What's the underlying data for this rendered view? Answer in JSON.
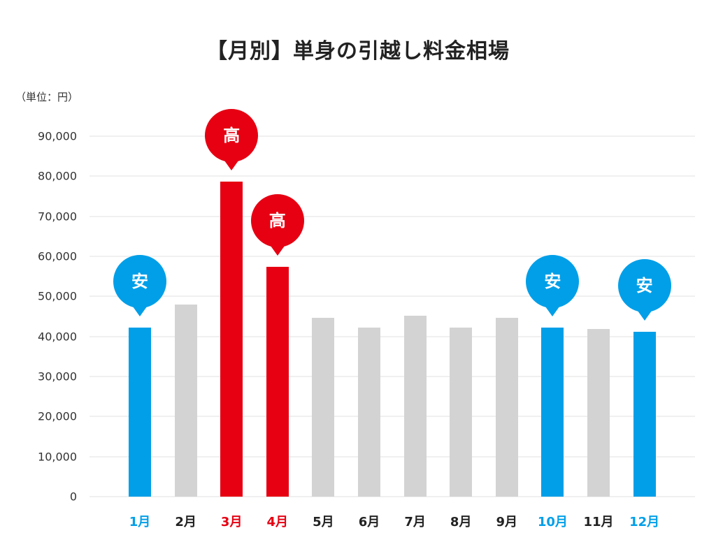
{
  "title": "【月別】単身の引越し料金相場",
  "unit_label": "（単位：円）",
  "colors": {
    "low": "#009fe8",
    "high": "#e60012",
    "normal": "#d3d3d3",
    "text": "#222222",
    "grid": "#f0f0f0"
  },
  "chart_data": {
    "type": "bar",
    "title": "【月別】単身の引越し料金相場",
    "xlabel": "",
    "ylabel": "（単位：円）",
    "ylim": [
      0,
      90000
    ],
    "yticks": [
      "0",
      "10,000",
      "20,000",
      "30,000",
      "40,000",
      "50,000",
      "60,000",
      "70,000",
      "80,000",
      "90,000"
    ],
    "grid": true,
    "categories": [
      "1月",
      "2月",
      "3月",
      "4月",
      "5月",
      "6月",
      "7月",
      "8月",
      "9月",
      "10月",
      "11月",
      "12月"
    ],
    "values": [
      42200,
      48000,
      78700,
      57400,
      44700,
      42200,
      45200,
      42200,
      44700,
      42200,
      41900,
      41200
    ],
    "annotations": [
      {
        "month": "1月",
        "label": "安",
        "type": "low"
      },
      {
        "month": "3月",
        "label": "高",
        "type": "high"
      },
      {
        "month": "4月",
        "label": "高",
        "type": "high"
      },
      {
        "month": "10月",
        "label": "安",
        "type": "low"
      },
      {
        "month": "12月",
        "label": "安",
        "type": "low"
      }
    ],
    "highlight": [
      "low",
      "normal",
      "high",
      "high",
      "normal",
      "normal",
      "normal",
      "normal",
      "normal",
      "low",
      "normal",
      "low"
    ]
  }
}
